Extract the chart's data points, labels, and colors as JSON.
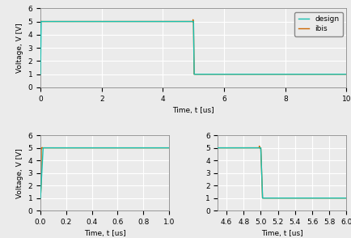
{
  "top_plot": {
    "xlim": [
      0,
      10
    ],
    "ylim": [
      0,
      6
    ],
    "xlabel": "Time, t [us]",
    "ylabel": "Voltage, V [V]",
    "xticks": [
      0,
      2,
      4,
      6,
      8,
      10
    ],
    "yticks": [
      0,
      1,
      2,
      3,
      4,
      5,
      6
    ]
  },
  "bottom_left": {
    "xlim": [
      0,
      1.0
    ],
    "ylim": [
      0,
      6
    ],
    "xlabel": "Time, t [us]",
    "ylabel": "Voltage, V [V]",
    "xticks": [
      0.0,
      0.2,
      0.4,
      0.6,
      0.8,
      1.0
    ],
    "yticks": [
      0,
      1,
      2,
      3,
      4,
      5,
      6
    ]
  },
  "bottom_right": {
    "xlim": [
      4.5,
      6.0
    ],
    "ylim": [
      0,
      6
    ],
    "xlabel": "Time, t [us]",
    "ylabel": "",
    "xticks": [
      4.6,
      4.8,
      5.0,
      5.2,
      5.4,
      5.6,
      5.8,
      6.0
    ],
    "yticks": [
      0,
      1,
      2,
      3,
      4,
      5,
      6
    ]
  },
  "legend_labels": [
    "design",
    "ibis"
  ],
  "design_color": "#17c0b0",
  "ibis_color": "#cc6600",
  "background_color": "#ebebeb",
  "grid_color": "#ffffff",
  "t_rise_start": 0.0,
  "t_rise_end": 0.02,
  "t_fall_start": 5.0,
  "t_fall_end": 5.02,
  "low_level": 1.0,
  "high_level": 5.0,
  "ibis_ripple_amp": 0.22,
  "ibis_rise_overshoot": 0.28
}
